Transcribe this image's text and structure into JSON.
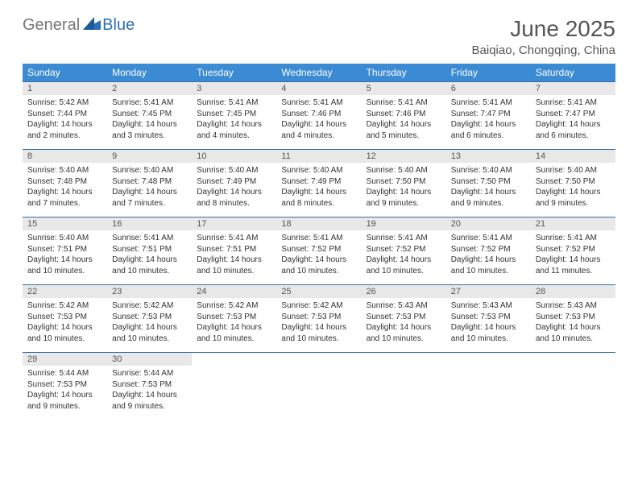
{
  "brand": {
    "part1": "General",
    "part2": "Blue"
  },
  "title": "June 2025",
  "location": "Baiqiao, Chongqing, China",
  "colors": {
    "header_bg": "#3b8bd4",
    "header_text": "#ffffff",
    "num_bg": "#e8e8e8",
    "border": "#3b6fa5",
    "brand_gray": "#777777",
    "brand_blue": "#2c6fb5"
  },
  "day_names": [
    "Sunday",
    "Monday",
    "Tuesday",
    "Wednesday",
    "Thursday",
    "Friday",
    "Saturday"
  ],
  "weeks": [
    {
      "nums": [
        "1",
        "2",
        "3",
        "4",
        "5",
        "6",
        "7"
      ],
      "cells": [
        {
          "sr": "Sunrise: 5:42 AM",
          "ss": "Sunset: 7:44 PM",
          "d1": "Daylight: 14 hours",
          "d2": "and 2 minutes."
        },
        {
          "sr": "Sunrise: 5:41 AM",
          "ss": "Sunset: 7:45 PM",
          "d1": "Daylight: 14 hours",
          "d2": "and 3 minutes."
        },
        {
          "sr": "Sunrise: 5:41 AM",
          "ss": "Sunset: 7:45 PM",
          "d1": "Daylight: 14 hours",
          "d2": "and 4 minutes."
        },
        {
          "sr": "Sunrise: 5:41 AM",
          "ss": "Sunset: 7:46 PM",
          "d1": "Daylight: 14 hours",
          "d2": "and 4 minutes."
        },
        {
          "sr": "Sunrise: 5:41 AM",
          "ss": "Sunset: 7:46 PM",
          "d1": "Daylight: 14 hours",
          "d2": "and 5 minutes."
        },
        {
          "sr": "Sunrise: 5:41 AM",
          "ss": "Sunset: 7:47 PM",
          "d1": "Daylight: 14 hours",
          "d2": "and 6 minutes."
        },
        {
          "sr": "Sunrise: 5:41 AM",
          "ss": "Sunset: 7:47 PM",
          "d1": "Daylight: 14 hours",
          "d2": "and 6 minutes."
        }
      ]
    },
    {
      "nums": [
        "8",
        "9",
        "10",
        "11",
        "12",
        "13",
        "14"
      ],
      "cells": [
        {
          "sr": "Sunrise: 5:40 AM",
          "ss": "Sunset: 7:48 PM",
          "d1": "Daylight: 14 hours",
          "d2": "and 7 minutes."
        },
        {
          "sr": "Sunrise: 5:40 AM",
          "ss": "Sunset: 7:48 PM",
          "d1": "Daylight: 14 hours",
          "d2": "and 7 minutes."
        },
        {
          "sr": "Sunrise: 5:40 AM",
          "ss": "Sunset: 7:49 PM",
          "d1": "Daylight: 14 hours",
          "d2": "and 8 minutes."
        },
        {
          "sr": "Sunrise: 5:40 AM",
          "ss": "Sunset: 7:49 PM",
          "d1": "Daylight: 14 hours",
          "d2": "and 8 minutes."
        },
        {
          "sr": "Sunrise: 5:40 AM",
          "ss": "Sunset: 7:50 PM",
          "d1": "Daylight: 14 hours",
          "d2": "and 9 minutes."
        },
        {
          "sr": "Sunrise: 5:40 AM",
          "ss": "Sunset: 7:50 PM",
          "d1": "Daylight: 14 hours",
          "d2": "and 9 minutes."
        },
        {
          "sr": "Sunrise: 5:40 AM",
          "ss": "Sunset: 7:50 PM",
          "d1": "Daylight: 14 hours",
          "d2": "and 9 minutes."
        }
      ]
    },
    {
      "nums": [
        "15",
        "16",
        "17",
        "18",
        "19",
        "20",
        "21"
      ],
      "cells": [
        {
          "sr": "Sunrise: 5:40 AM",
          "ss": "Sunset: 7:51 PM",
          "d1": "Daylight: 14 hours",
          "d2": "and 10 minutes."
        },
        {
          "sr": "Sunrise: 5:41 AM",
          "ss": "Sunset: 7:51 PM",
          "d1": "Daylight: 14 hours",
          "d2": "and 10 minutes."
        },
        {
          "sr": "Sunrise: 5:41 AM",
          "ss": "Sunset: 7:51 PM",
          "d1": "Daylight: 14 hours",
          "d2": "and 10 minutes."
        },
        {
          "sr": "Sunrise: 5:41 AM",
          "ss": "Sunset: 7:52 PM",
          "d1": "Daylight: 14 hours",
          "d2": "and 10 minutes."
        },
        {
          "sr": "Sunrise: 5:41 AM",
          "ss": "Sunset: 7:52 PM",
          "d1": "Daylight: 14 hours",
          "d2": "and 10 minutes."
        },
        {
          "sr": "Sunrise: 5:41 AM",
          "ss": "Sunset: 7:52 PM",
          "d1": "Daylight: 14 hours",
          "d2": "and 10 minutes."
        },
        {
          "sr": "Sunrise: 5:41 AM",
          "ss": "Sunset: 7:52 PM",
          "d1": "Daylight: 14 hours",
          "d2": "and 11 minutes."
        }
      ]
    },
    {
      "nums": [
        "22",
        "23",
        "24",
        "25",
        "26",
        "27",
        "28"
      ],
      "cells": [
        {
          "sr": "Sunrise: 5:42 AM",
          "ss": "Sunset: 7:53 PM",
          "d1": "Daylight: 14 hours",
          "d2": "and 10 minutes."
        },
        {
          "sr": "Sunrise: 5:42 AM",
          "ss": "Sunset: 7:53 PM",
          "d1": "Daylight: 14 hours",
          "d2": "and 10 minutes."
        },
        {
          "sr": "Sunrise: 5:42 AM",
          "ss": "Sunset: 7:53 PM",
          "d1": "Daylight: 14 hours",
          "d2": "and 10 minutes."
        },
        {
          "sr": "Sunrise: 5:42 AM",
          "ss": "Sunset: 7:53 PM",
          "d1": "Daylight: 14 hours",
          "d2": "and 10 minutes."
        },
        {
          "sr": "Sunrise: 5:43 AM",
          "ss": "Sunset: 7:53 PM",
          "d1": "Daylight: 14 hours",
          "d2": "and 10 minutes."
        },
        {
          "sr": "Sunrise: 5:43 AM",
          "ss": "Sunset: 7:53 PM",
          "d1": "Daylight: 14 hours",
          "d2": "and 10 minutes."
        },
        {
          "sr": "Sunrise: 5:43 AM",
          "ss": "Sunset: 7:53 PM",
          "d1": "Daylight: 14 hours",
          "d2": "and 10 minutes."
        }
      ]
    },
    {
      "nums": [
        "29",
        "30",
        "",
        "",
        "",
        "",
        ""
      ],
      "cells": [
        {
          "sr": "Sunrise: 5:44 AM",
          "ss": "Sunset: 7:53 PM",
          "d1": "Daylight: 14 hours",
          "d2": "and 9 minutes."
        },
        {
          "sr": "Sunrise: 5:44 AM",
          "ss": "Sunset: 7:53 PM",
          "d1": "Daylight: 14 hours",
          "d2": "and 9 minutes."
        },
        null,
        null,
        null,
        null,
        null
      ]
    }
  ]
}
